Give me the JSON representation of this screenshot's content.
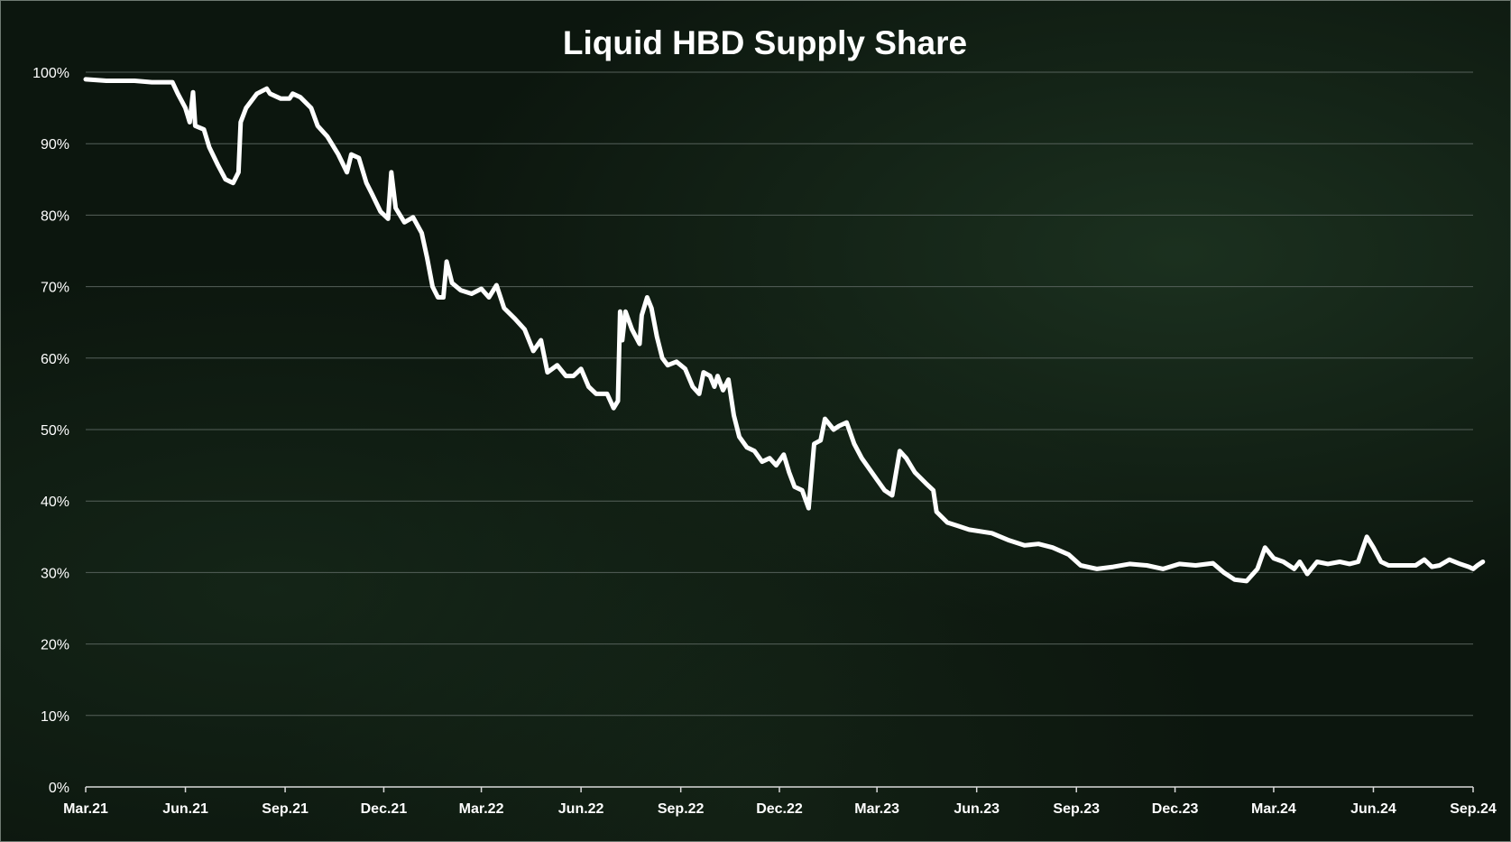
{
  "chart_data": {
    "type": "line",
    "title": "Liquid HBD Supply Share",
    "xlabel": "",
    "ylabel": "",
    "ylim": [
      0,
      100
    ],
    "y_ticks": [
      "0%",
      "10%",
      "20%",
      "30%",
      "40%",
      "50%",
      "60%",
      "70%",
      "80%",
      "90%",
      "100%"
    ],
    "x_ticks": [
      "Mar.21",
      "Jun.21",
      "Sep.21",
      "Dec.21",
      "Mar.22",
      "Jun.22",
      "Sep.22",
      "Dec.22",
      "Mar.23",
      "Jun.23",
      "Sep.23",
      "Dec.23",
      "Mar.24",
      "Jun.24",
      "Sep.24"
    ],
    "grid": true,
    "legend": "none",
    "series": [
      {
        "line_color": "#ffffff",
        "points": [
          [
            "2021-03-01",
            99
          ],
          [
            "2021-03-20",
            98.8
          ],
          [
            "2021-04-15",
            98.8
          ],
          [
            "2021-05-01",
            98.6
          ],
          [
            "2021-05-20",
            98.6
          ],
          [
            "2021-05-25",
            97
          ],
          [
            "2021-06-01",
            95
          ],
          [
            "2021-06-05",
            93
          ],
          [
            "2021-06-08",
            97.2
          ],
          [
            "2021-06-10",
            92.5
          ],
          [
            "2021-06-18",
            92
          ],
          [
            "2021-06-23",
            89.5
          ],
          [
            "2021-07-01",
            87
          ],
          [
            "2021-07-08",
            85
          ],
          [
            "2021-07-15",
            84.5
          ],
          [
            "2021-07-20",
            86
          ],
          [
            "2021-07-22",
            93
          ],
          [
            "2021-07-27",
            95
          ],
          [
            "2021-08-06",
            97
          ],
          [
            "2021-08-15",
            97.7
          ],
          [
            "2021-08-18",
            97
          ],
          [
            "2021-08-28",
            96.3
          ],
          [
            "2021-09-05",
            96.3
          ],
          [
            "2021-09-08",
            97
          ],
          [
            "2021-09-15",
            96.5
          ],
          [
            "2021-09-25",
            95
          ],
          [
            "2021-10-01",
            92.5
          ],
          [
            "2021-10-10",
            91
          ],
          [
            "2021-10-20",
            88.5
          ],
          [
            "2021-10-28",
            86
          ],
          [
            "2021-11-01",
            88.5
          ],
          [
            "2021-11-08",
            88
          ],
          [
            "2021-11-15",
            84.5
          ],
          [
            "2021-11-20",
            83
          ],
          [
            "2021-11-28",
            80.5
          ],
          [
            "2021-12-05",
            79.5
          ],
          [
            "2021-12-08",
            86
          ],
          [
            "2021-12-12",
            81
          ],
          [
            "2021-12-20",
            79
          ],
          [
            "2021-12-28",
            79.7
          ],
          [
            "2022-01-05",
            77.5
          ],
          [
            "2022-01-10",
            74
          ],
          [
            "2022-01-15",
            70
          ],
          [
            "2022-01-20",
            68.5
          ],
          [
            "2022-01-25",
            68.5
          ],
          [
            "2022-01-28",
            73.5
          ],
          [
            "2022-02-02",
            70.5
          ],
          [
            "2022-02-10",
            69.5
          ],
          [
            "2022-02-20",
            69
          ],
          [
            "2022-03-01",
            69.7
          ],
          [
            "2022-03-08",
            68.5
          ],
          [
            "2022-03-15",
            70.2
          ],
          [
            "2022-03-22",
            67
          ],
          [
            "2022-04-01",
            65.5
          ],
          [
            "2022-04-10",
            64
          ],
          [
            "2022-04-18",
            61
          ],
          [
            "2022-04-25",
            62.5
          ],
          [
            "2022-05-01",
            58
          ],
          [
            "2022-05-10",
            59
          ],
          [
            "2022-05-18",
            57.5
          ],
          [
            "2022-05-25",
            57.5
          ],
          [
            "2022-06-01",
            58.5
          ],
          [
            "2022-06-08",
            56
          ],
          [
            "2022-06-15",
            55
          ],
          [
            "2022-06-25",
            55
          ],
          [
            "2022-07-01",
            53
          ],
          [
            "2022-07-05",
            54
          ],
          [
            "2022-07-07",
            66.5
          ],
          [
            "2022-07-09",
            62.5
          ],
          [
            "2022-07-12",
            66.5
          ],
          [
            "2022-07-18",
            64
          ],
          [
            "2022-07-25",
            62
          ],
          [
            "2022-07-27",
            66
          ],
          [
            "2022-08-01",
            68.5
          ],
          [
            "2022-08-05",
            67
          ],
          [
            "2022-08-10",
            63
          ],
          [
            "2022-08-15",
            60
          ],
          [
            "2022-08-20",
            59
          ],
          [
            "2022-08-28",
            59.5
          ],
          [
            "2022-09-05",
            58.5
          ],
          [
            "2022-09-12",
            56
          ],
          [
            "2022-09-18",
            55
          ],
          [
            "2022-09-22",
            58
          ],
          [
            "2022-09-28",
            57.5
          ],
          [
            "2022-10-02",
            56
          ],
          [
            "2022-10-05",
            57.5
          ],
          [
            "2022-10-10",
            55.5
          ],
          [
            "2022-10-15",
            57
          ],
          [
            "2022-10-20",
            52
          ],
          [
            "2022-10-25",
            49
          ],
          [
            "2022-11-01",
            47.5
          ],
          [
            "2022-11-08",
            47
          ],
          [
            "2022-11-15",
            45.5
          ],
          [
            "2022-11-22",
            46
          ],
          [
            "2022-11-28",
            45
          ],
          [
            "2022-12-05",
            46.5
          ],
          [
            "2022-12-10",
            44
          ],
          [
            "2022-12-15",
            42
          ],
          [
            "2022-12-22",
            41.5
          ],
          [
            "2022-12-28",
            39
          ],
          [
            "2023-01-02",
            48
          ],
          [
            "2023-01-08",
            48.5
          ],
          [
            "2023-01-12",
            51.5
          ],
          [
            "2023-01-20",
            50
          ],
          [
            "2023-01-25",
            50.5
          ],
          [
            "2023-02-01",
            51
          ],
          [
            "2023-02-08",
            48
          ],
          [
            "2023-02-15",
            46
          ],
          [
            "2023-02-22",
            44.5
          ],
          [
            "2023-03-01",
            43
          ],
          [
            "2023-03-08",
            41.5
          ],
          [
            "2023-03-15",
            40.8
          ],
          [
            "2023-03-22",
            47
          ],
          [
            "2023-03-28",
            46
          ],
          [
            "2023-04-05",
            44
          ],
          [
            "2023-04-15",
            42.5
          ],
          [
            "2023-04-22",
            41.5
          ],
          [
            "2023-04-25",
            38.5
          ],
          [
            "2023-05-05",
            37
          ],
          [
            "2023-05-15",
            36.5
          ],
          [
            "2023-05-25",
            36
          ],
          [
            "2023-06-15",
            35.5
          ],
          [
            "2023-07-01",
            34.5
          ],
          [
            "2023-07-15",
            33.8
          ],
          [
            "2023-07-28",
            34
          ],
          [
            "2023-08-10",
            33.5
          ],
          [
            "2023-08-25",
            32.5
          ],
          [
            "2023-09-05",
            31
          ],
          [
            "2023-09-20",
            30.5
          ],
          [
            "2023-10-05",
            30.8
          ],
          [
            "2023-10-20",
            31.2
          ],
          [
            "2023-11-05",
            31
          ],
          [
            "2023-11-20",
            30.5
          ],
          [
            "2023-12-05",
            31.2
          ],
          [
            "2023-12-20",
            31
          ],
          [
            "2024-01-05",
            31.3
          ],
          [
            "2024-01-15",
            30
          ],
          [
            "2024-01-25",
            29
          ],
          [
            "2024-02-05",
            28.8
          ],
          [
            "2024-02-15",
            30.5
          ],
          [
            "2024-02-22",
            33.5
          ],
          [
            "2024-03-01",
            32
          ],
          [
            "2024-03-10",
            31.5
          ],
          [
            "2024-03-20",
            30.5
          ],
          [
            "2024-03-25",
            31.5
          ],
          [
            "2024-04-01",
            29.8
          ],
          [
            "2024-04-10",
            31.5
          ],
          [
            "2024-04-20",
            31.2
          ],
          [
            "2024-05-01",
            31.5
          ],
          [
            "2024-05-10",
            31.2
          ],
          [
            "2024-05-18",
            31.5
          ],
          [
            "2024-05-26",
            35
          ],
          [
            "2024-06-01",
            33.5
          ],
          [
            "2024-06-08",
            31.5
          ],
          [
            "2024-06-15",
            31
          ],
          [
            "2024-06-25",
            31
          ],
          [
            "2024-07-10",
            31
          ],
          [
            "2024-07-18",
            31.8
          ],
          [
            "2024-07-25",
            30.8
          ],
          [
            "2024-08-01",
            31
          ],
          [
            "2024-08-10",
            31.8
          ],
          [
            "2024-08-20",
            31.2
          ],
          [
            "2024-08-28",
            30.8
          ],
          [
            "2024-09-01",
            30.5
          ],
          [
            "2024-09-05",
            31
          ],
          [
            "2024-09-10",
            31.5
          ]
        ]
      }
    ]
  }
}
